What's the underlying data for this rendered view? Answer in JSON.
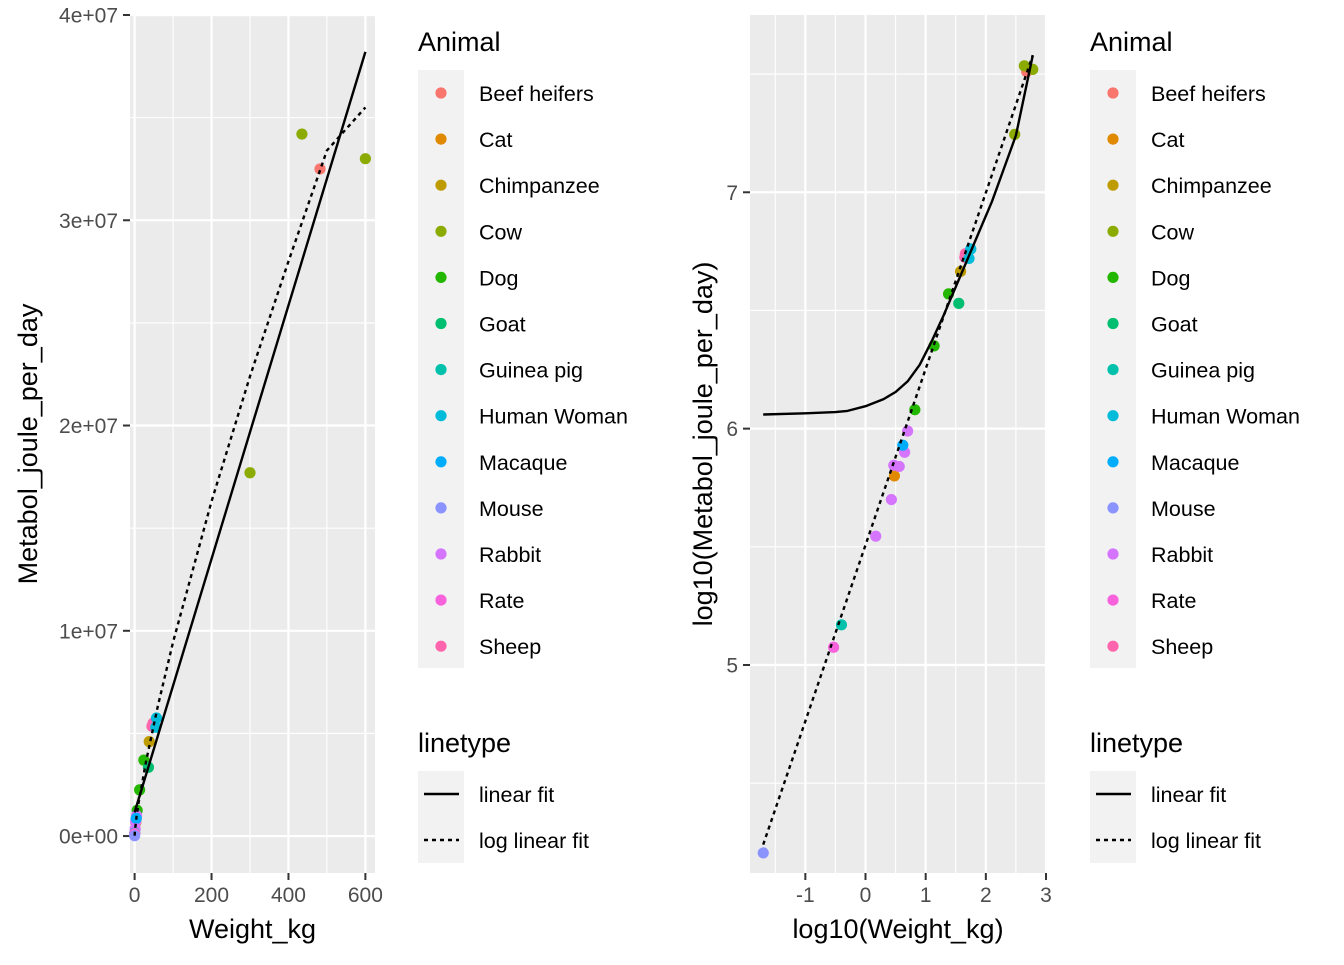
{
  "colors": {
    "panel_bg": "#ebebeb",
    "grid": "#ffffff",
    "fit_line": "#000000",
    "legend_key_bg": "#f2f2f2",
    "animals": {
      "Beef heifers": "#f8766d",
      "Cat": "#e18a00",
      "Chimpanzee": "#be9c00",
      "Cow": "#8cab00",
      "Dog": "#24b700",
      "Goat": "#00be70",
      "Guinea pig": "#00c1ab",
      "Human Woman": "#00bbda",
      "Macaque": "#00acfc",
      "Mouse": "#8b93ff",
      "Rabbit": "#d575fe",
      "Rate": "#f962dd",
      "Sheep": "#ff65ac"
    }
  },
  "chart_data": [
    {
      "type": "scatter",
      "xlabel": "Weight_kg",
      "ylabel": "Metabol_joule_per_day",
      "xlim": [
        -12,
        625
      ],
      "ylim": [
        -1800000,
        40000000
      ],
      "x_ticks": [
        0,
        200,
        400,
        600
      ],
      "x_tick_labels": [
        "0",
        "200",
        "400",
        "600"
      ],
      "y_ticks": [
        0,
        10000000,
        20000000,
        30000000,
        40000000
      ],
      "y_tick_labels": [
        "0e+00",
        "1e+07",
        "2e+07",
        "3e+07",
        "4e+07"
      ],
      "grid": true,
      "legend_position": "right",
      "points": [
        {
          "animal": "Beef heifers",
          "x": 482,
          "y": 32500000
        },
        {
          "animal": "Cow",
          "x": 435,
          "y": 34200000
        },
        {
          "animal": "Cow",
          "x": 600,
          "y": 33000000
        },
        {
          "animal": "Cow",
          "x": 300,
          "y": 17700000
        },
        {
          "animal": "Sheep",
          "x": 48,
          "y": 5500000
        },
        {
          "animal": "Sheep",
          "x": 45,
          "y": 5350000
        },
        {
          "animal": "Human Woman",
          "x": 57,
          "y": 5750000
        },
        {
          "animal": "Human Woman",
          "x": 55,
          "y": 5300000
        },
        {
          "animal": "Chimpanzee",
          "x": 38,
          "y": 4600000
        },
        {
          "animal": "Dog",
          "x": 24,
          "y": 3700000
        },
        {
          "animal": "Dog",
          "x": 13,
          "y": 2250000
        },
        {
          "animal": "Dog",
          "x": 6.6,
          "y": 1250000
        },
        {
          "animal": "Goat",
          "x": 36,
          "y": 3350000
        },
        {
          "animal": "Cat",
          "x": 3,
          "y": 660000
        },
        {
          "animal": "Rabbit",
          "x": 2.7,
          "y": 690000
        },
        {
          "animal": "Rabbit",
          "x": 3.6,
          "y": 800000
        },
        {
          "animal": "Rabbit",
          "x": 5.1,
          "y": 1000000
        },
        {
          "animal": "Macaque",
          "x": 4.2,
          "y": 860000
        },
        {
          "animal": "Rabbit",
          "x": 1.5,
          "y": 355000
        },
        {
          "animal": "Guinea pig",
          "x": 0.4,
          "y": 148000
        },
        {
          "animal": "Rate",
          "x": 0.3,
          "y": 120000
        },
        {
          "animal": "Mouse",
          "x": 0.02,
          "y": 16000
        }
      ],
      "lines": [
        {
          "name": "linear fit",
          "dash": "solid",
          "x": [
            0.02,
            600
          ],
          "y": [
            1150000,
            38200000
          ]
        },
        {
          "name": "log linear fit",
          "dash": "dotted",
          "x": [
            0.02,
            1,
            5,
            10,
            30,
            60,
            100,
            200,
            300,
            400,
            500,
            600
          ],
          "y": [
            17000,
            277000,
            925000,
            1590000,
            3670000,
            6300000,
            9460000,
            16300000,
            22400000,
            28000000,
            33400000,
            35500000
          ]
        }
      ]
    },
    {
      "type": "scatter",
      "xlabel": "log10(Weight_kg)",
      "ylabel": "log10(Metabol_joule_per_day)",
      "xlim": [
        -1.92,
        3.0
      ],
      "ylim": [
        4.12,
        7.75
      ],
      "x_ticks": [
        -1,
        0,
        1,
        2,
        3
      ],
      "x_tick_labels": [
        "-1",
        "0",
        "1",
        "2",
        "3"
      ],
      "y_ticks": [
        5,
        6,
        7
      ],
      "y_tick_labels": [
        "5",
        "6",
        "7"
      ],
      "grid": true,
      "legend_position": "right",
      "points": [
        {
          "animal": "Beef heifers",
          "x": 2.68,
          "y": 7.51
        },
        {
          "animal": "Cow",
          "x": 2.64,
          "y": 7.535
        },
        {
          "animal": "Cow",
          "x": 2.78,
          "y": 7.52
        },
        {
          "animal": "Cow",
          "x": 2.48,
          "y": 7.245
        },
        {
          "animal": "Sheep",
          "x": 1.66,
          "y": 6.74
        },
        {
          "animal": "Sheep",
          "x": 1.65,
          "y": 6.725
        },
        {
          "animal": "Human Woman",
          "x": 1.75,
          "y": 6.76
        },
        {
          "animal": "Human Woman",
          "x": 1.72,
          "y": 6.72
        },
        {
          "animal": "Chimpanzee",
          "x": 1.58,
          "y": 6.665
        },
        {
          "animal": "Dog",
          "x": 1.38,
          "y": 6.57
        },
        {
          "animal": "Dog",
          "x": 1.14,
          "y": 6.35
        },
        {
          "animal": "Dog",
          "x": 0.82,
          "y": 6.08
        },
        {
          "animal": "Goat",
          "x": 1.55,
          "y": 6.53
        },
        {
          "animal": "Cat",
          "x": 0.48,
          "y": 5.8
        },
        {
          "animal": "Rabbit",
          "x": 0.43,
          "y": 5.7
        },
        {
          "animal": "Rabbit",
          "x": 0.56,
          "y": 5.84
        },
        {
          "animal": "Rabbit",
          "x": 0.7,
          "y": 5.99
        },
        {
          "animal": "Rabbit",
          "x": 0.65,
          "y": 5.9
        },
        {
          "animal": "Rabbit",
          "x": 0.47,
          "y": 5.845
        },
        {
          "animal": "Macaque",
          "x": 0.62,
          "y": 5.93
        },
        {
          "animal": "Rabbit",
          "x": 0.17,
          "y": 5.545
        },
        {
          "animal": "Guinea pig",
          "x": -0.4,
          "y": 5.17
        },
        {
          "animal": "Rate",
          "x": -0.53,
          "y": 5.075
        },
        {
          "animal": "Mouse",
          "x": -1.7,
          "y": 4.205
        }
      ],
      "lines": [
        {
          "name": "linear fit",
          "dash": "solid",
          "x": [
            -1.7,
            -1,
            -0.5,
            -0.3,
            0,
            0.3,
            0.5,
            0.7,
            0.9,
            1.1,
            1.3,
            1.5,
            1.7,
            1.9,
            2.1,
            2.3,
            2.5,
            2.78
          ],
          "y": [
            6.06,
            6.065,
            6.07,
            6.075,
            6.095,
            6.125,
            6.155,
            6.2,
            6.27,
            6.37,
            6.48,
            6.6,
            6.72,
            6.84,
            6.96,
            7.1,
            7.24,
            7.58
          ]
        },
        {
          "name": "log linear fit",
          "dash": "dotted",
          "x": [
            -1.7,
            2.78
          ],
          "y": [
            4.24,
            7.58
          ]
        }
      ]
    }
  ],
  "legend": {
    "animal_title": "Animal",
    "animal_labels": [
      "Beef heifers",
      "Cat",
      "Chimpanzee",
      "Cow",
      "Dog",
      "Goat",
      "Guinea pig",
      "Human Woman",
      "Macaque",
      "Mouse",
      "Rabbit",
      "Rate",
      "Sheep"
    ],
    "linetype_title": "linetype",
    "linetype_labels": [
      "linear fit",
      "log linear fit"
    ]
  }
}
